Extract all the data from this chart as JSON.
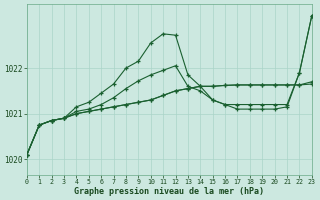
{
  "title": "Graphe pression niveau de la mer (hPa)",
  "bg_color": "#cce8e0",
  "grid_color": "#aad4c8",
  "line_color": "#1a6030",
  "xlim": [
    0,
    23
  ],
  "ylim": [
    1019.65,
    1023.4
  ],
  "yticks": [
    1020,
    1021,
    1022
  ],
  "xticks": [
    0,
    1,
    2,
    3,
    4,
    5,
    6,
    7,
    8,
    9,
    10,
    11,
    12,
    13,
    14,
    15,
    16,
    17,
    18,
    19,
    20,
    21,
    22,
    23
  ],
  "series1": [
    1020.1,
    1020.75,
    1020.85,
    1020.9,
    1021.15,
    1021.25,
    1021.45,
    1021.65,
    1022.0,
    1022.15,
    1022.55,
    1022.75,
    1022.72,
    1021.85,
    1021.6,
    1021.3,
    1021.2,
    1021.1,
    1021.1,
    1021.1,
    1021.1,
    1021.15,
    1021.9,
    1023.15
  ],
  "series2": [
    1020.1,
    1020.75,
    1020.85,
    1020.9,
    1021.0,
    1021.05,
    1021.1,
    1021.15,
    1021.2,
    1021.25,
    1021.3,
    1021.4,
    1021.5,
    1021.55,
    1021.6,
    1021.6,
    1021.62,
    1021.63,
    1021.63,
    1021.63,
    1021.63,
    1021.63,
    1021.63,
    1021.65
  ],
  "series3": [
    1020.1,
    1020.75,
    1020.85,
    1020.9,
    1021.0,
    1021.05,
    1021.1,
    1021.15,
    1021.2,
    1021.25,
    1021.3,
    1021.4,
    1021.5,
    1021.55,
    1021.6,
    1021.6,
    1021.62,
    1021.63,
    1021.63,
    1021.63,
    1021.63,
    1021.63,
    1021.63,
    1021.7
  ],
  "series4": [
    1020.1,
    1020.75,
    1020.85,
    1020.9,
    1021.05,
    1021.1,
    1021.2,
    1021.35,
    1021.55,
    1021.72,
    1021.85,
    1021.95,
    1022.05,
    1021.6,
    1021.5,
    1021.3,
    1021.2,
    1021.2,
    1021.2,
    1021.2,
    1021.2,
    1021.2,
    1021.9,
    1023.15
  ]
}
